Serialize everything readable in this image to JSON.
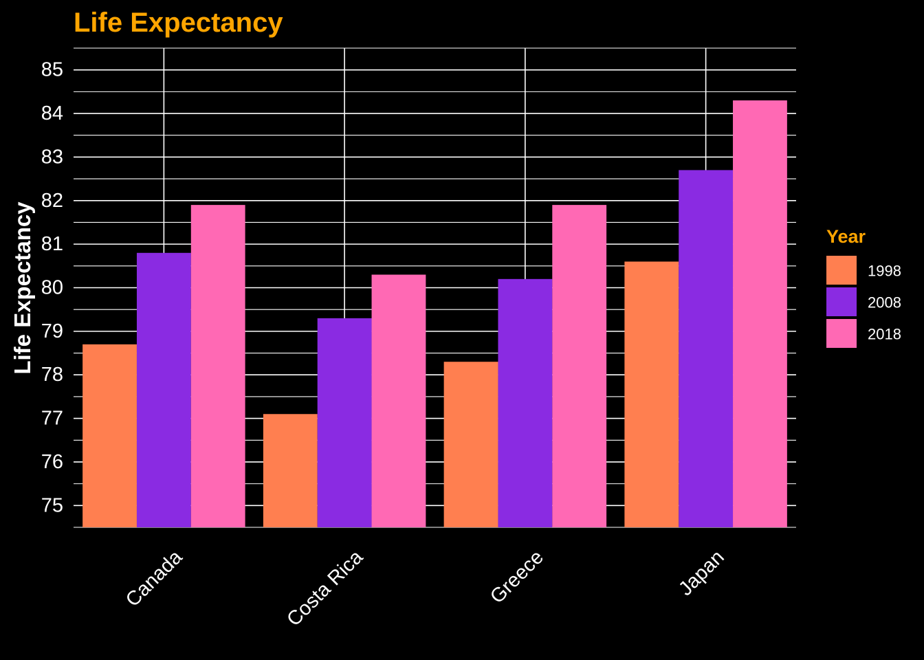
{
  "chart_data": {
    "type": "bar",
    "title": "Life Expectancy",
    "xlabel": "",
    "ylabel": "Life Expectancy",
    "categories": [
      "Canada",
      "Costa Rica",
      "Greece",
      "Japan"
    ],
    "series": [
      {
        "name": "1998",
        "color": "#FF7F50",
        "values": [
          78.7,
          77.1,
          78.3,
          80.6
        ]
      },
      {
        "name": "2008",
        "color": "#8A2BE2",
        "values": [
          80.8,
          79.3,
          80.2,
          82.7
        ]
      },
      {
        "name": "2018",
        "color": "#FF69B4",
        "values": [
          81.9,
          80.3,
          81.9,
          84.3
        ]
      }
    ],
    "ylim": [
      74.5,
      85.5
    ],
    "yticks": [
      75,
      76,
      77,
      78,
      79,
      80,
      81,
      82,
      83,
      84,
      85
    ],
    "legend": {
      "title": "Year",
      "placement": "right"
    },
    "grid": true,
    "colors": {
      "background": "#000000",
      "title": "#FFA500",
      "text": "#FFFFFF",
      "grid": "#FFFFFF"
    }
  }
}
